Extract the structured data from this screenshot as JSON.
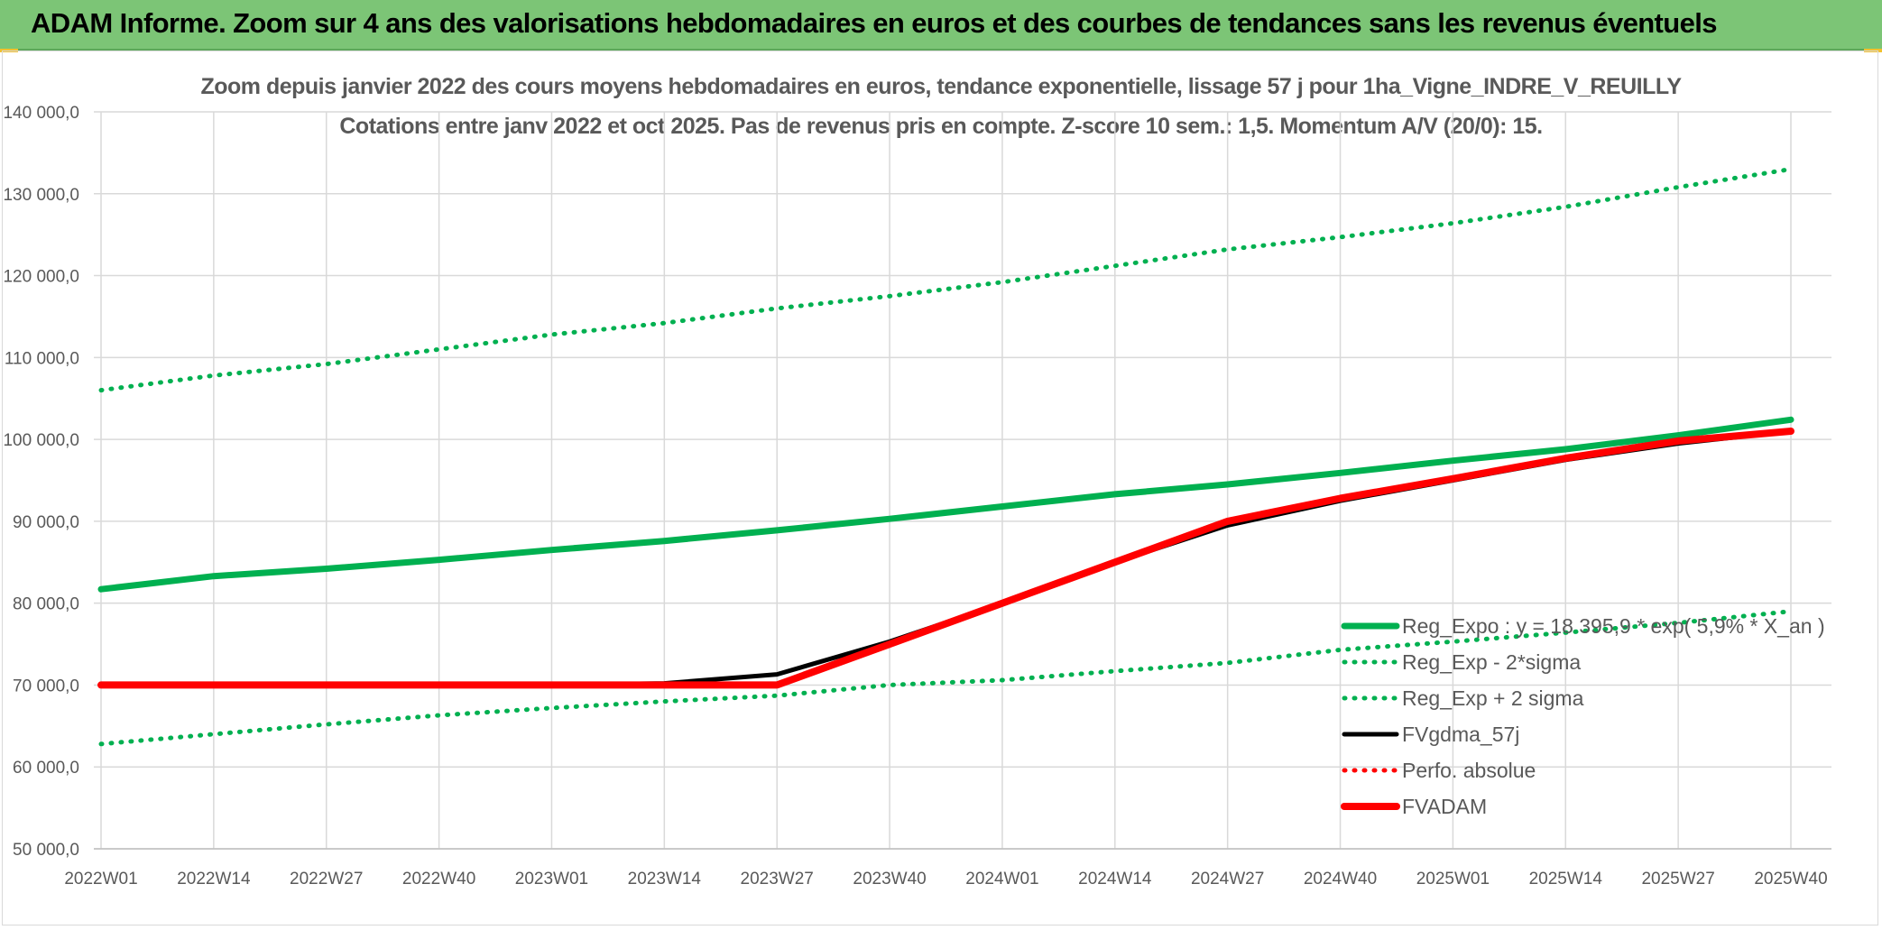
{
  "header": {
    "title": "ADAM Informe. Zoom sur 4 ans des valorisations hebdomadaires en euros et des courbes de tendances sans les revenus éventuels"
  },
  "chart_data": {
    "type": "line",
    "title": "Zoom depuis janvier 2022 des cours moyens hebdomadaires en euros, tendance exponentielle, lissage 57 j pour 1ha_Vigne_INDRE_V_REUILLY",
    "subtitle": "Cotations entre janv 2022 et oct 2025. Pas de revenus pris en compte. Z-score 10 sem.: 1,5. Momentum A/V (20/0): 15.",
    "xlabel": "",
    "ylabel": "",
    "ylim": [
      50000,
      140000
    ],
    "y_ticks": [
      "50 000,0",
      "60 000,0",
      "70 000,0",
      "80 000,0",
      "90 000,0",
      "100 000,0",
      "110 000,0",
      "120 000,0",
      "130 000,0",
      "140 000,0"
    ],
    "y_tick_values": [
      50000,
      60000,
      70000,
      80000,
      90000,
      100000,
      110000,
      120000,
      130000,
      140000
    ],
    "categories": [
      "2022W01",
      "2022W14",
      "2022W27",
      "2022W40",
      "2023W01",
      "2023W14",
      "2023W27",
      "2023W40",
      "2024W01",
      "2024W14",
      "2024W27",
      "2024W40",
      "2025W01",
      "2025W14",
      "2025W27",
      "2025W40"
    ],
    "grid": true,
    "legend_position": "bottom-right",
    "series": [
      {
        "name": "Reg_Expo : y = 18 395,9 * exp( 5,9% * X_an )",
        "color": "#00b050",
        "style": "solid",
        "values": [
          81700,
          83300,
          84200,
          85300,
          86500,
          87600,
          88900,
          90300,
          91800,
          93300,
          94500,
          95900,
          97400,
          98800,
          100500,
          102400
        ]
      },
      {
        "name": "Reg_Exp - 2*sigma",
        "color": "#00b050",
        "style": "dotted",
        "values": [
          62800,
          64000,
          65200,
          66300,
          67200,
          68000,
          68700,
          70000,
          70600,
          71700,
          72700,
          74300,
          75300,
          76400,
          77600,
          79000
        ]
      },
      {
        "name": "Reg_Exp + 2 sigma",
        "color": "#00b050",
        "style": "dotted",
        "values": [
          106000,
          107800,
          109200,
          111000,
          112800,
          114200,
          116000,
          117500,
          119200,
          121200,
          123200,
          124700,
          126400,
          128400,
          130800,
          133000
        ]
      },
      {
        "name": "FVgdma_57j",
        "color": "#000000",
        "style": "solid",
        "values": [
          70000,
          70000,
          70000,
          70000,
          70000,
          70200,
          71300,
          75300,
          80000,
          85000,
          89500,
          92500,
          95000,
          97500,
          99500,
          101000
        ]
      },
      {
        "name": "Perfo. absolue",
        "color": "#ff0000",
        "style": "dotted",
        "values": [
          70000,
          70000,
          70000,
          70000,
          70000,
          70000,
          70000,
          75000,
          80000,
          85000,
          90000,
          92800,
          95200,
          97700,
          99800,
          101000
        ]
      },
      {
        "name": "FVADAM",
        "color": "#ff0000",
        "style": "solid",
        "values": [
          70000,
          70000,
          70000,
          70000,
          70000,
          70000,
          70000,
          75000,
          80000,
          85000,
          90000,
          92800,
          95200,
          97700,
          99800,
          101000
        ]
      }
    ]
  }
}
